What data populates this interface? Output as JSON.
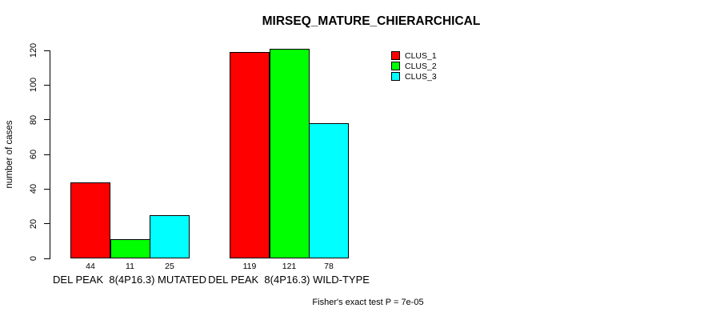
{
  "chart_data": {
    "type": "bar",
    "title": "MIRSEQ_MATURE_CHIERARCHICAL",
    "ylabel": "number of cases",
    "xlabel": "",
    "ylim": [
      0,
      120
    ],
    "yticks": [
      0,
      20,
      40,
      60,
      80,
      100,
      120
    ],
    "grid": false,
    "background": "#ffffff",
    "bar_border_color": "#000000",
    "categories": [
      "DEL PEAK  8(4P16.3) MUTATED",
      "DEL PEAK  8(4P16.3) WILD-TYPE"
    ],
    "series": [
      {
        "name": "CLUS_1",
        "color": "#ff0000",
        "values": [
          44,
          119
        ]
      },
      {
        "name": "CLUS_2",
        "color": "#00ff00",
        "values": [
          11,
          121
        ]
      },
      {
        "name": "CLUS_3",
        "color": "#00ffff",
        "values": [
          25,
          78
        ]
      }
    ],
    "show_bar_values": true,
    "legend": {
      "position": "top-right",
      "entries": [
        "CLUS_1",
        "CLUS_2",
        "CLUS_3"
      ]
    },
    "annotation": "Fisher's exact test P = 7e-05"
  }
}
